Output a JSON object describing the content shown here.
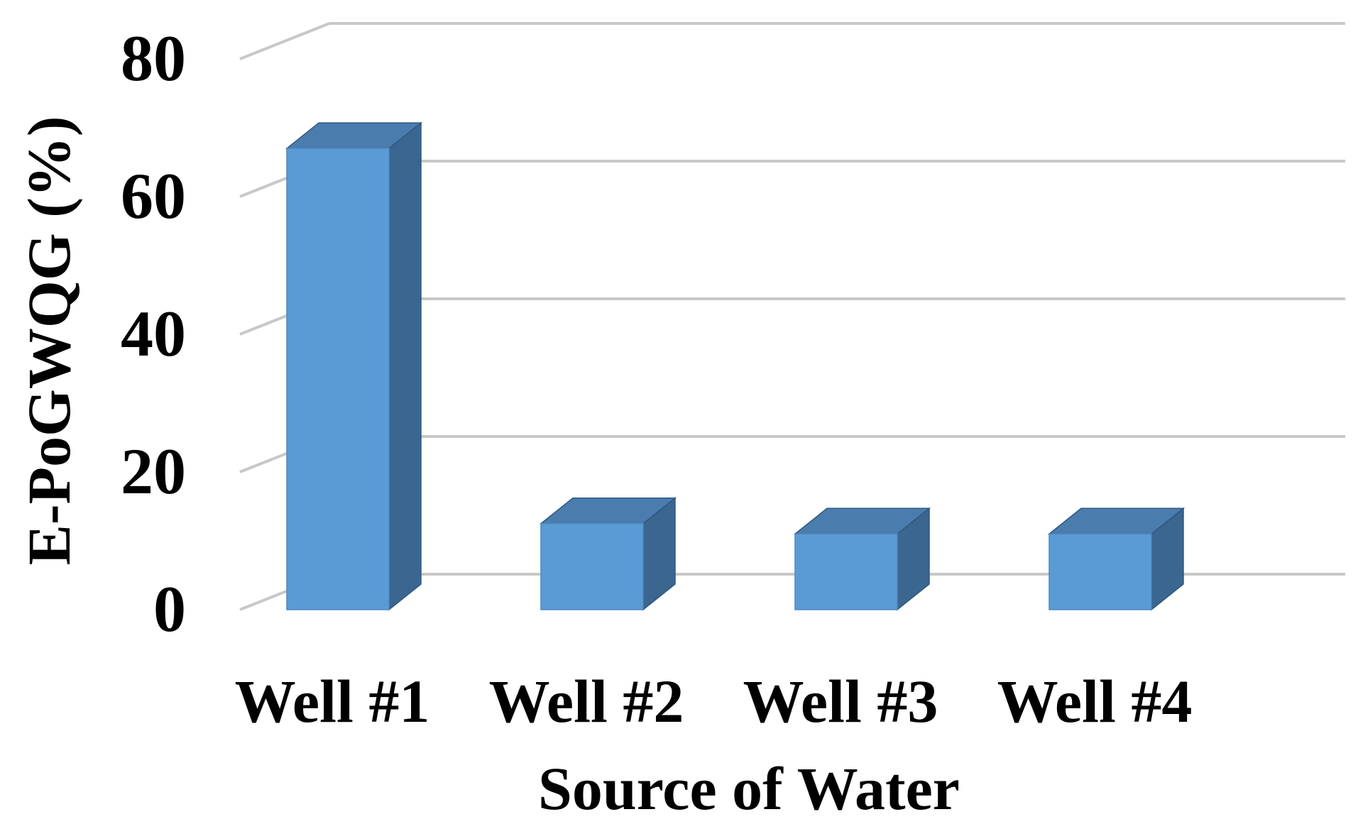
{
  "chart_data": {
    "type": "bar",
    "style": "3d-column",
    "categories": [
      "Well #1",
      "Well #2",
      "Well #3",
      "Well #4"
    ],
    "values": [
      67,
      12.5,
      11,
      11
    ],
    "xlabel": "Source of Water",
    "ylabel": "E-PoGWQG (%)",
    "ylim": [
      0,
      80
    ],
    "yticks": [
      0,
      20,
      40,
      60,
      80
    ],
    "grid": true,
    "legend": "none",
    "colors": {
      "bar_front": "#5B9BD5",
      "bar_top": "#4A7CAE",
      "bar_side": "#3A6690",
      "bar_edge": "#2E5880",
      "grid": "#C8C8C8"
    }
  }
}
